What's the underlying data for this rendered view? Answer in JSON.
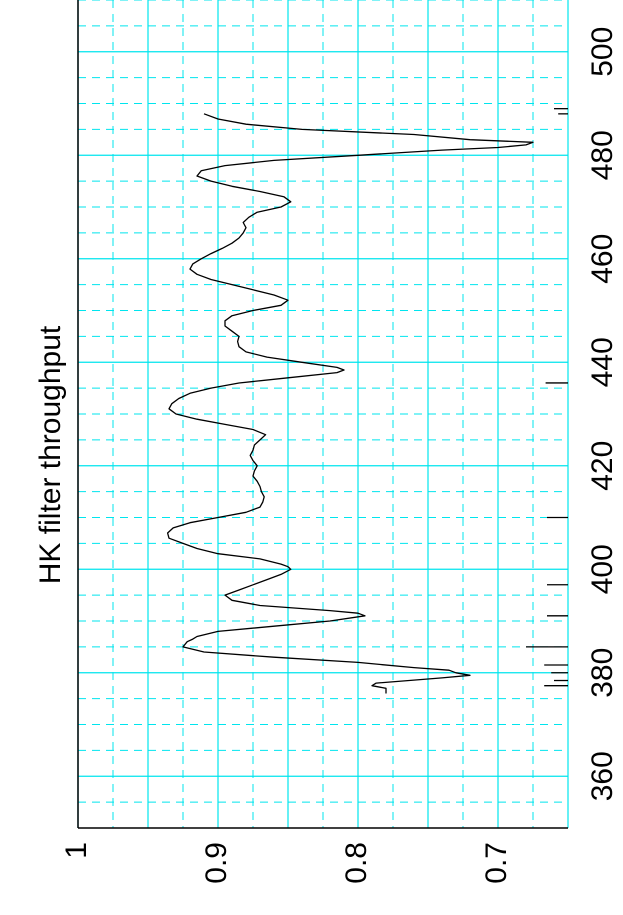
{
  "chart_data": {
    "type": "line",
    "title": "HK filter throughput",
    "xlabel": "",
    "ylabel": "",
    "orientation": "rotated-90-ccw",
    "xlim": [
      350,
      510
    ],
    "ylim": [
      0.65,
      1.0
    ],
    "x_ticks": [
      360,
      380,
      400,
      420,
      440,
      460,
      480,
      500
    ],
    "y_ticks": [
      0.7,
      0.8,
      0.9,
      1.0
    ],
    "y_tick_labels": [
      "0.7",
      "0.8",
      "0.9",
      "1"
    ],
    "grid": true,
    "grid_color": "#00e5ee",
    "line_color": "#000000",
    "series": [
      {
        "x": [
          376,
          377,
          377.5,
          378,
          379,
          379.5,
          380,
          380.5,
          381,
          382,
          383,
          384,
          385,
          386,
          386.5,
          387,
          388,
          389,
          390,
          391,
          391.5,
          392,
          393,
          394,
          395,
          396,
          397,
          398,
          399,
          400,
          400.5,
          401,
          402,
          403,
          404,
          405,
          406,
          407,
          408,
          409,
          410,
          411,
          412,
          413,
          414,
          415,
          416,
          417,
          418,
          419,
          420,
          421,
          422,
          423,
          424,
          425,
          426,
          427,
          428,
          429,
          430,
          431,
          432,
          433,
          434,
          435,
          436,
          437,
          438,
          438.5,
          439,
          440,
          441,
          442,
          443,
          444,
          445,
          446,
          447,
          448,
          449,
          450,
          451,
          452,
          453,
          454,
          455,
          456,
          457,
          458,
          459,
          460,
          461,
          462,
          463,
          464,
          465,
          466,
          467,
          468,
          469,
          470,
          471,
          472,
          473,
          474,
          475,
          476,
          477,
          478,
          479,
          480,
          481,
          481.5,
          482,
          482.5,
          483,
          484,
          485,
          486,
          487,
          488
        ],
        "y": [
          0.78,
          0.78,
          0.79,
          0.787,
          0.74,
          0.72,
          0.73,
          0.735,
          0.76,
          0.8,
          0.86,
          0.91,
          0.925,
          0.922,
          0.918,
          0.915,
          0.9,
          0.86,
          0.82,
          0.795,
          0.8,
          0.82,
          0.87,
          0.89,
          0.895,
          0.885,
          0.875,
          0.865,
          0.855,
          0.848,
          0.85,
          0.855,
          0.87,
          0.9,
          0.915,
          0.925,
          0.935,
          0.936,
          0.932,
          0.92,
          0.9,
          0.88,
          0.87,
          0.868,
          0.867,
          0.869,
          0.87,
          0.872,
          0.875,
          0.874,
          0.872,
          0.875,
          0.877,
          0.875,
          0.874,
          0.87,
          0.866,
          0.875,
          0.895,
          0.915,
          0.93,
          0.935,
          0.933,
          0.928,
          0.92,
          0.905,
          0.885,
          0.85,
          0.815,
          0.81,
          0.815,
          0.84,
          0.865,
          0.88,
          0.885,
          0.886,
          0.885,
          0.89,
          0.895,
          0.895,
          0.89,
          0.875,
          0.855,
          0.85,
          0.86,
          0.875,
          0.89,
          0.905,
          0.915,
          0.92,
          0.918,
          0.912,
          0.905,
          0.897,
          0.89,
          0.885,
          0.882,
          0.88,
          0.882,
          0.878,
          0.872,
          0.855,
          0.848,
          0.853,
          0.87,
          0.89,
          0.905,
          0.915,
          0.912,
          0.895,
          0.86,
          0.8,
          0.74,
          0.7,
          0.68,
          0.675,
          0.72,
          0.76,
          0.84,
          0.88,
          0.9,
          0.91
        ]
      }
    ],
    "annotation_lines": [
      {
        "x": 377.5,
        "y_from": 0.65,
        "y_to": 0.667
      },
      {
        "x": 378.5,
        "y_from": 0.65,
        "y_to": 0.66
      },
      {
        "x": 380,
        "y_from": 0.65,
        "y_to": 0.662
      },
      {
        "x": 381.5,
        "y_from": 0.65,
        "y_to": 0.667
      },
      {
        "x": 385,
        "y_from": 0.65,
        "y_to": 0.68
      },
      {
        "x": 391,
        "y_from": 0.65,
        "y_to": 0.665
      },
      {
        "x": 397,
        "y_from": 0.65,
        "y_to": 0.665
      },
      {
        "x": 410,
        "y_from": 0.65,
        "y_to": 0.665
      },
      {
        "x": 436,
        "y_from": 0.65,
        "y_to": 0.666
      },
      {
        "x": 488,
        "y_from": 0.65,
        "y_to": 0.657
      },
      {
        "x": 489,
        "y_from": 0.65,
        "y_to": 0.66
      }
    ]
  }
}
